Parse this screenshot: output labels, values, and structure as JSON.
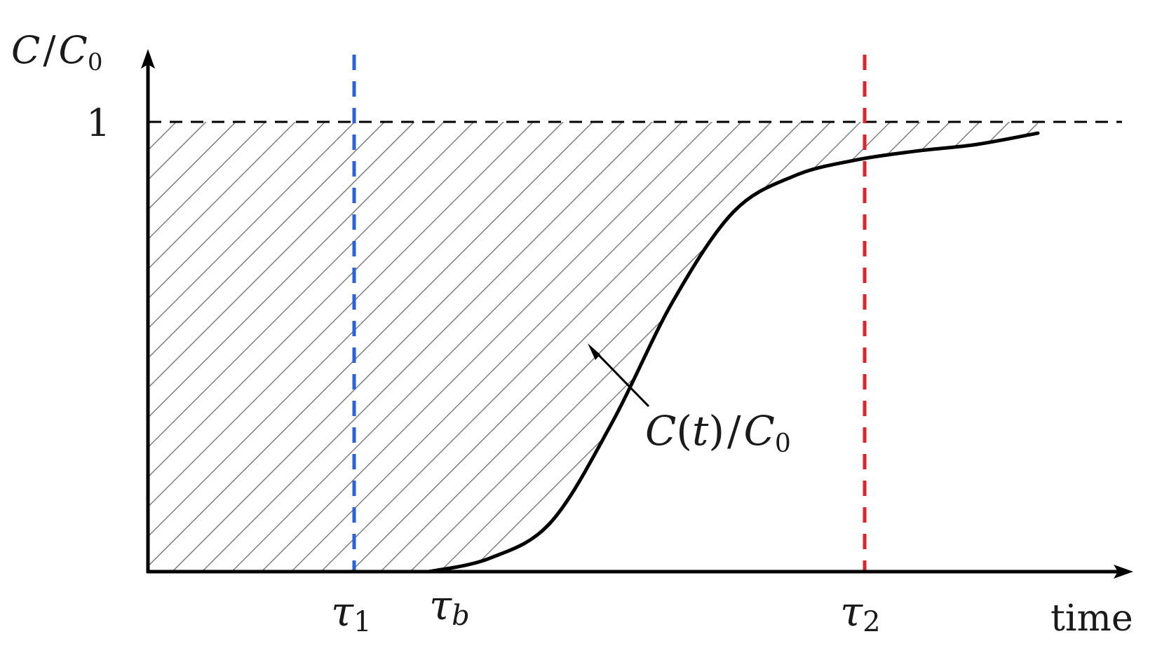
{
  "y_axis_label": {
    "main": "C",
    "sep": "/",
    "den": "C",
    "den_sub": "0"
  },
  "x_axis_label": "time",
  "y_tick_one": "1",
  "tau1": {
    "sym": "τ",
    "sub": "1"
  },
  "taub": {
    "sym": "τ",
    "sub": "b"
  },
  "tau2": {
    "sym": "τ",
    "sub": "2"
  },
  "curve_label": {
    "lead": "C",
    "open": "(",
    "arg": "t",
    "close": ")",
    "sep": "/",
    "den": "C",
    "den_sub": "0"
  },
  "colors": {
    "axis": "#000000",
    "curve": "#000000",
    "hatch": "#808080",
    "tau1_line": "#2a62d8",
    "tau2_line": "#d8262e",
    "saturation_line": "#000000"
  },
  "curve_points": [
    [
      0,
      0
    ],
    [
      0.1,
      0.03
    ],
    [
      0.2,
      0.11
    ],
    [
      0.3,
      0.33
    ],
    [
      0.4,
      0.6
    ],
    [
      0.5,
      0.8
    ],
    [
      0.6,
      0.88
    ],
    [
      0.7,
      0.915
    ],
    [
      0.8,
      0.935
    ],
    [
      0.9,
      0.95
    ],
    [
      1.0,
      0.975
    ]
  ]
}
